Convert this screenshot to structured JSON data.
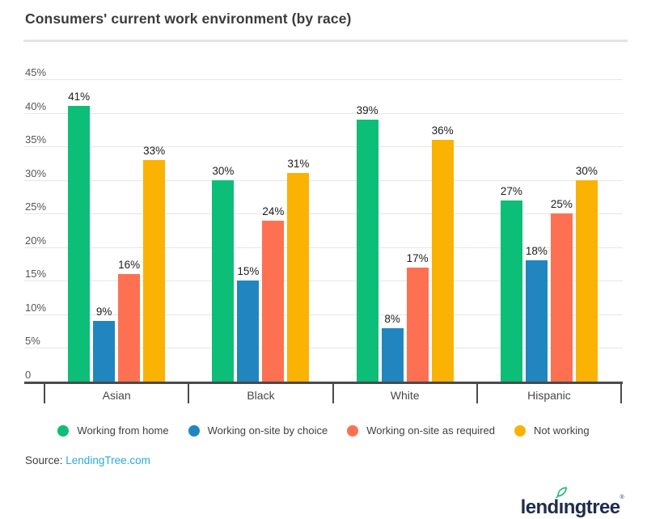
{
  "header": {
    "title": "Consumers' current work environment (by race)"
  },
  "chart_data": {
    "type": "bar",
    "title": "Consumers' current work environment (by race)",
    "categories": [
      "Asian",
      "Black",
      "White",
      "Hispanic"
    ],
    "series": [
      {
        "name": "Working from home",
        "color": "#0DBE78",
        "values": [
          41,
          30,
          39,
          27
        ]
      },
      {
        "name": "Working on-site by choice",
        "color": "#2186C0",
        "values": [
          9,
          15,
          8,
          18
        ]
      },
      {
        "name": "Working on-site as required",
        "color": "#FD7152",
        "values": [
          16,
          24,
          17,
          25
        ]
      },
      {
        "name": "Not working",
        "color": "#FAB203",
        "values": [
          33,
          31,
          36,
          30
        ]
      }
    ],
    "y_ticks": [
      {
        "label": "45%",
        "value": 45
      },
      {
        "label": "40%",
        "value": 40
      },
      {
        "label": "35%",
        "value": 35
      },
      {
        "label": "30%",
        "value": 30
      },
      {
        "label": "25%",
        "value": 25
      },
      {
        "label": "20%",
        "value": 20
      },
      {
        "label": "15%",
        "value": 15
      },
      {
        "label": "10%",
        "value": 10
      },
      {
        "label": "5%",
        "value": 5
      },
      {
        "label": "0",
        "value": 0
      }
    ],
    "ylim": [
      0,
      45
    ],
    "xlabel": "",
    "ylabel": "",
    "grid": true,
    "legend_position": "bottom",
    "value_label_suffix": "%"
  },
  "footer": {
    "source_label": "Source: ",
    "source_link": "LendingTree.com",
    "logo": {
      "pre": "lend",
      "dotless_i": "ı",
      "post": "ngtree",
      "trademark": "®",
      "leaf_color": "#1FB871",
      "navy": "#1F2C4C"
    }
  }
}
